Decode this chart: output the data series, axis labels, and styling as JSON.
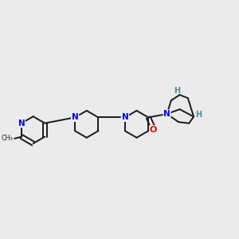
{
  "background_color": "#ebebeb",
  "bond_color": "#1a1a1a",
  "nitrogen_color": "#0000ee",
  "oxygen_color": "#ee0000",
  "hydrogen_color": "#4a9090",
  "figsize": [
    3.0,
    3.0
  ],
  "dpi": 100,
  "xlim": [
    0.0,
    1.0
  ],
  "ylim": [
    0.25,
    0.85
  ]
}
